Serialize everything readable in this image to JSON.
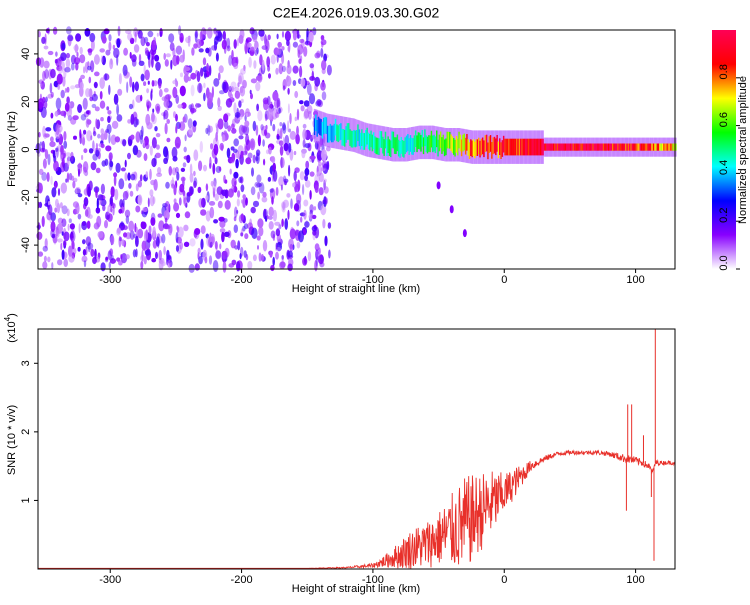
{
  "title": "C2E4.2026.019.03.30.G02",
  "colorbar": {
    "label": "Normalized spectral amplitude",
    "ticks": [
      "0.0",
      "0.2",
      "0.4",
      "0.6",
      "0.8"
    ],
    "tick_values": [
      0.0,
      0.2,
      0.4,
      0.6,
      0.8
    ],
    "range": [
      0,
      1
    ],
    "colormap": [
      "#ffffff",
      "#8800ff",
      "#0000ff",
      "#00ffff",
      "#00ff00",
      "#ffff00",
      "#ff0000",
      "#ff0055"
    ]
  },
  "chart_data": [
    {
      "type": "heatmap",
      "xlabel": "Height of straight line (km)",
      "ylabel": "Frequency (Hz)",
      "xlim": [
        -355,
        130
      ],
      "ylim": [
        -50,
        50
      ],
      "xticks": [
        -300,
        -200,
        -100,
        0,
        100
      ],
      "xtick_labels": [
        "-300",
        "-200",
        "-100",
        "0",
        "100"
      ],
      "yticks": [
        -40,
        -20,
        0,
        20,
        40
      ],
      "ytick_labels": [
        "-40",
        "-20",
        "0",
        "20",
        "40"
      ],
      "noise_region_x": [
        -355,
        -133
      ],
      "ridge": {
        "x": [
          -145,
          -135,
          -125,
          -115,
          -105,
          -95,
          -85,
          -75,
          -65,
          -55,
          -45,
          -35,
          -25,
          -15,
          -5,
          5,
          15,
          30,
          50,
          70,
          90,
          110,
          130
        ],
        "center_freq": [
          10,
          8,
          7,
          6,
          4,
          3,
          2,
          2,
          3,
          3,
          2,
          2,
          1,
          1,
          1,
          1,
          1,
          1,
          1,
          1,
          1,
          1,
          1
        ],
        "amplitude": [
          0.35,
          0.4,
          0.45,
          0.45,
          0.45,
          0.5,
          0.5,
          0.45,
          0.5,
          0.55,
          0.6,
          0.7,
          0.8,
          0.85,
          0.85,
          0.9,
          0.9,
          0.95,
          0.95,
          0.95,
          0.9,
          0.85,
          0.7
        ]
      },
      "stray_signal": {
        "x": [
          -50,
          -40,
          -30
        ],
        "freq": [
          -15,
          -25,
          -35
        ]
      },
      "grid": false
    },
    {
      "type": "line",
      "xlabel": "Height of straight line (km)",
      "ylabel": "SNR (10 * v/v)",
      "yscale_label": "(x10",
      "yscale_exp": "4",
      "yscale_close": ")",
      "xlim": [
        -355,
        130
      ],
      "ylim": [
        0,
        3.5
      ],
      "xticks": [
        -300,
        -200,
        -100,
        0,
        100
      ],
      "xtick_labels": [
        "-300",
        "-200",
        "-100",
        "0",
        "100"
      ],
      "yticks": [
        1,
        2,
        3
      ],
      "ytick_labels": [
        "1",
        "2",
        "3"
      ],
      "series": [
        {
          "color": "#e8302a",
          "x": [
            -355,
            -300,
            -250,
            -200,
            -150,
            -120,
            -100,
            -90,
            -80,
            -70,
            -60,
            -50,
            -40,
            -30,
            -20,
            -10,
            0,
            10,
            20,
            30,
            40,
            50,
            60,
            70,
            80,
            85,
            90,
            95,
            100,
            105,
            110,
            113,
            115,
            120,
            130
          ],
          "y": [
            0.01,
            0.01,
            0.01,
            0.01,
            0.01,
            0.02,
            0.05,
            0.12,
            0.2,
            0.3,
            0.35,
            0.45,
            0.55,
            0.65,
            0.8,
            0.95,
            1.1,
            1.3,
            1.5,
            1.6,
            1.68,
            1.7,
            1.7,
            1.7,
            1.68,
            1.65,
            1.62,
            1.6,
            1.58,
            1.55,
            1.5,
            1.4,
            1.55,
            1.55,
            1.55
          ],
          "noise": [
            0,
            0,
            0,
            0,
            0,
            0.01,
            0.03,
            0.1,
            0.2,
            0.3,
            0.35,
            0.4,
            0.55,
            0.7,
            0.6,
            0.5,
            0.3,
            0.2,
            0.08,
            0.05,
            0.03,
            0.03,
            0.03,
            0.03,
            0.04,
            0.05,
            0.06,
            0.06,
            0.06,
            0.05,
            0.05,
            0.05,
            0.04,
            0.03,
            0.03
          ]
        }
      ],
      "spikes": [
        {
          "x": 93,
          "y": 0.85
        },
        {
          "x": 94,
          "y": 2.4
        },
        {
          "x": 97,
          "y": 2.4
        },
        {
          "x": 106,
          "y": 1.95
        },
        {
          "x": 112,
          "y": 1.05
        },
        {
          "x": 114,
          "y": 0.12
        },
        {
          "x": 115,
          "y": 3.5
        }
      ],
      "grid": false
    }
  ]
}
